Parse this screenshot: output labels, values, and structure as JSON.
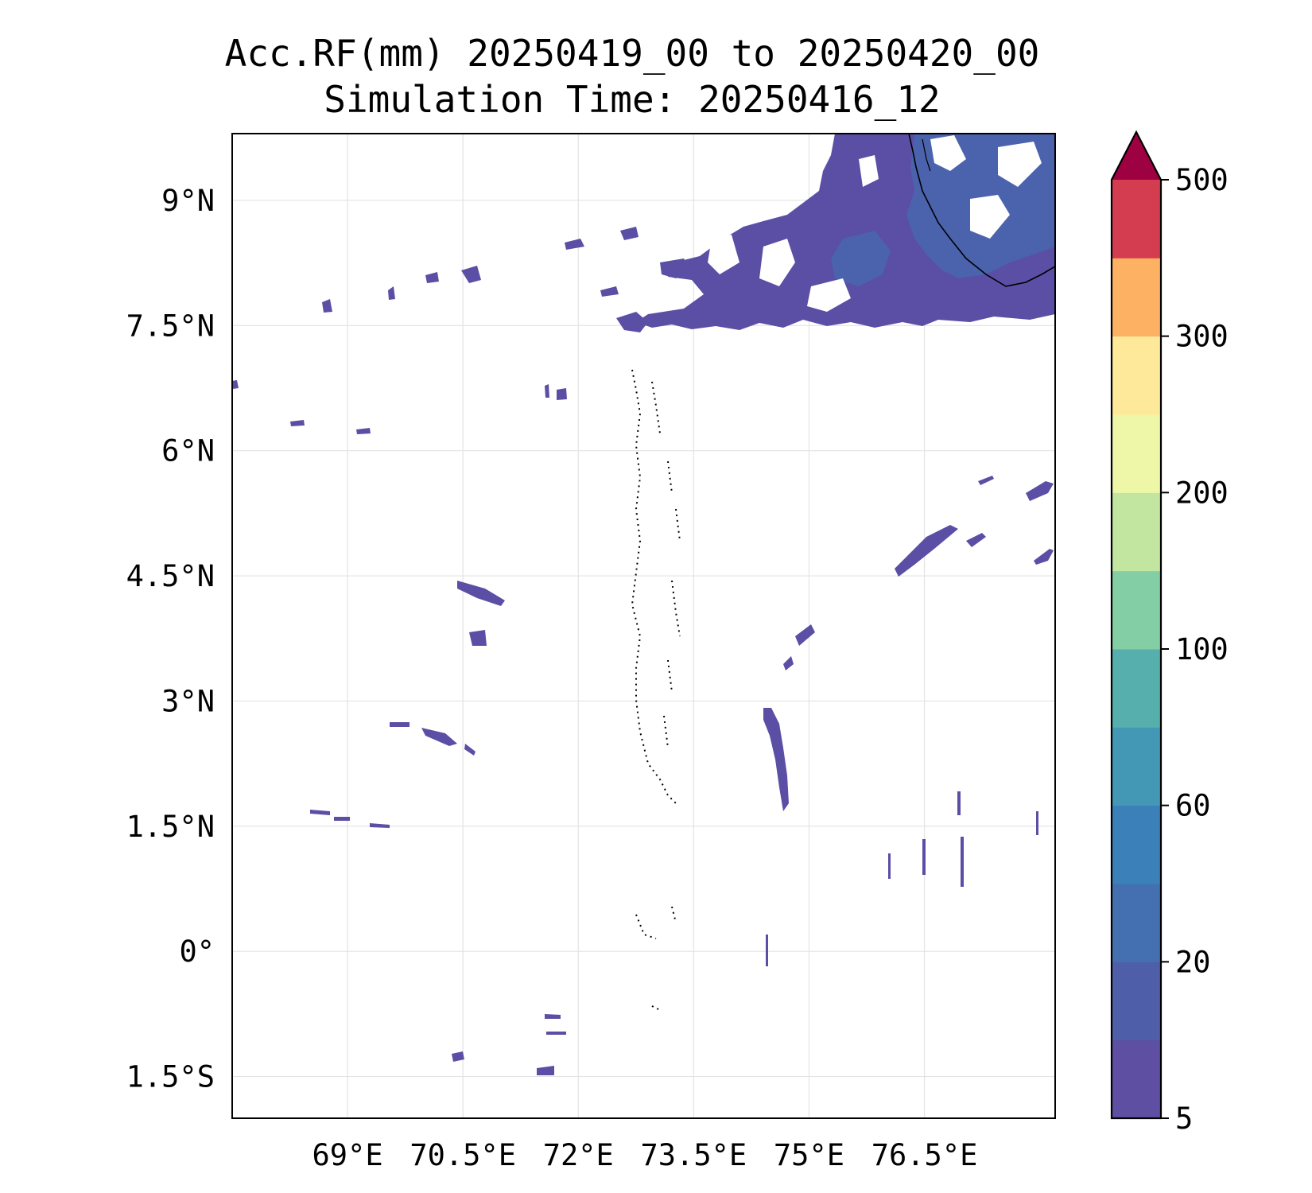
{
  "title": {
    "line1": "Acc.RF(mm) 20250419_00 to 20250420_00",
    "line2": "Simulation Time: 20250416_12"
  },
  "map": {
    "lon_range": [
      67.5,
      78.2
    ],
    "lat_range": [
      -2.0,
      9.8
    ],
    "grid": true,
    "x_ticks": [
      69,
      70.5,
      72,
      73.5,
      75,
      76.5
    ],
    "x_tick_labels": [
      "69°E",
      "70.5°E",
      "72°E",
      "73.5°E",
      "75°E",
      "76.5°E"
    ],
    "y_ticks": [
      9,
      7.5,
      6,
      4.5,
      3,
      1.5,
      0,
      -1.5
    ],
    "y_tick_labels": [
      "9°N",
      "7.5°N",
      "6°N",
      "4.5°N",
      "3°N",
      "1.5°N",
      "0°",
      "1.5°S"
    ]
  },
  "colorbar": {
    "levels": [
      5,
      10,
      20,
      40,
      60,
      80,
      100,
      150,
      200,
      250,
      300,
      400,
      500
    ],
    "tick_values": [
      5,
      20,
      60,
      100,
      200,
      300,
      500
    ],
    "tick_labels": [
      "5",
      "20",
      "60",
      "100",
      "200",
      "300",
      "500"
    ],
    "colors": [
      "#5e4fa2",
      "#4f5ea9",
      "#4470b1",
      "#3b80b9",
      "#4298b5",
      "#56aead",
      "#84cea5",
      "#c2e6a0",
      "#edf7a7",
      "#fee89a",
      "#fdb163",
      "#d43d4f"
    ],
    "extend_color": "#9e0142",
    "extend": "max"
  },
  "rainfall_color": "#5b4ea5",
  "rainfall_dark_color": "#4b62ad"
}
